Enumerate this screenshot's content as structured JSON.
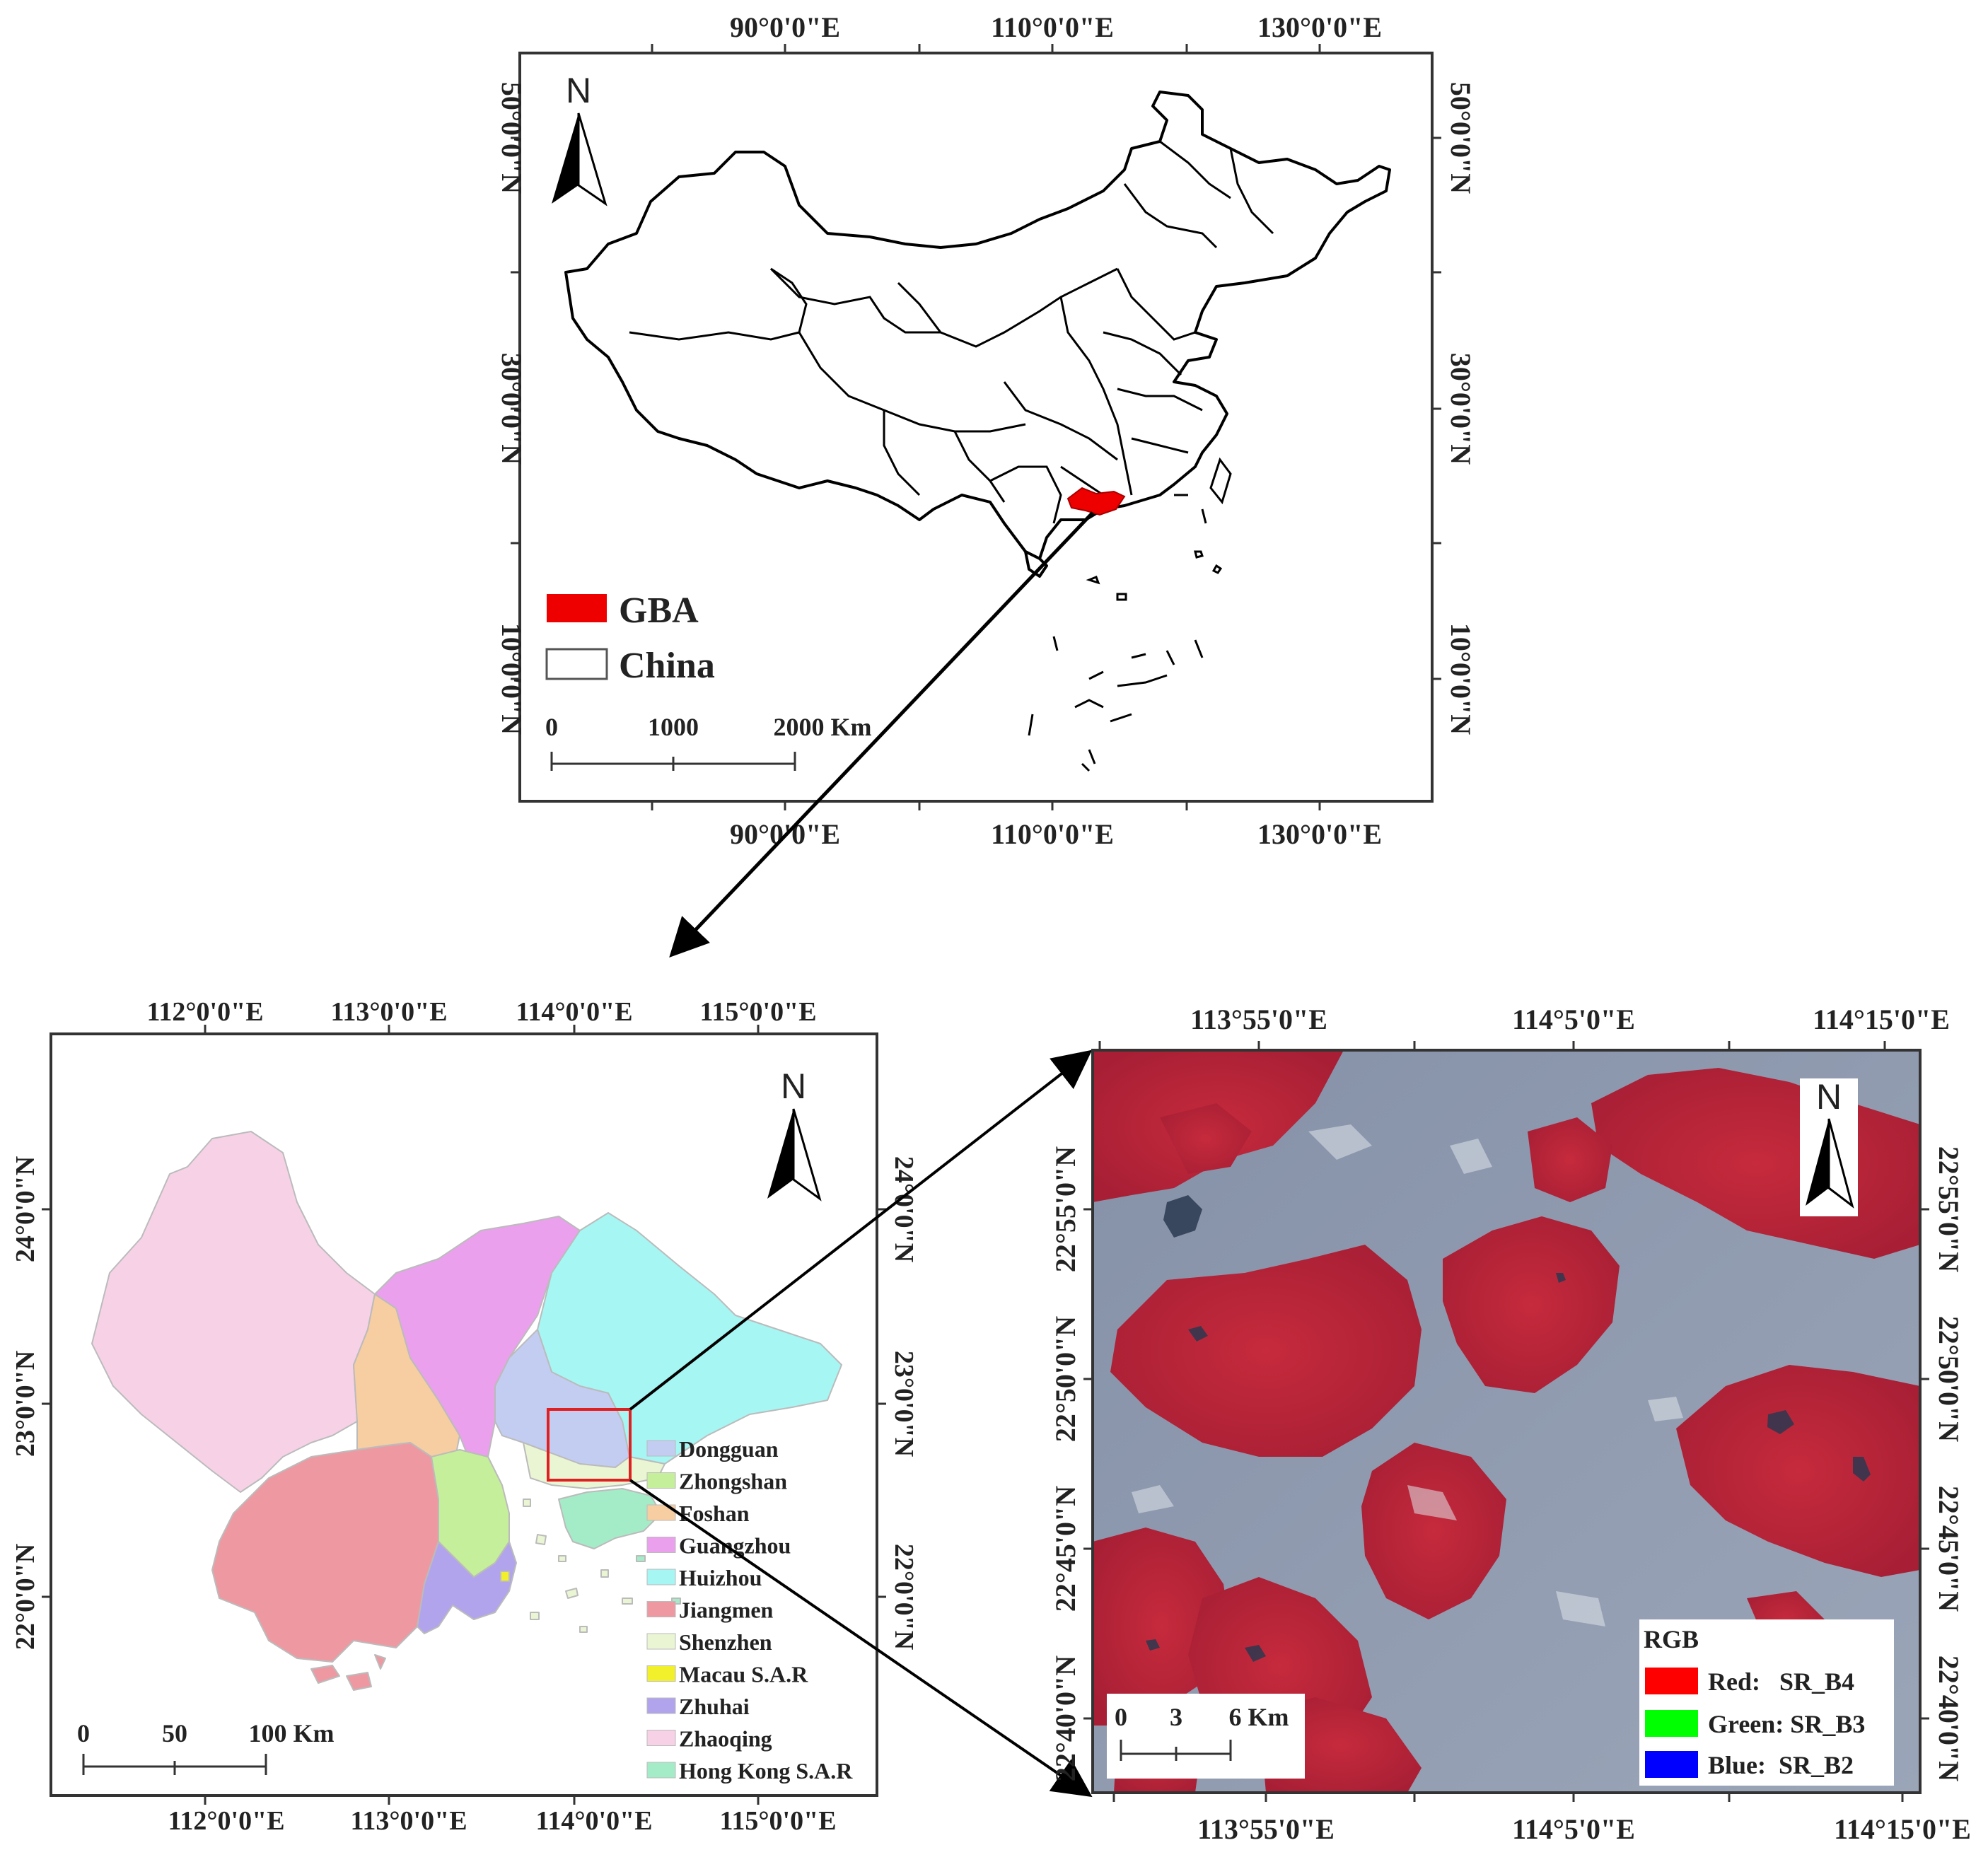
{
  "top_map": {
    "lon_ticks": [
      "90°0'0\"E",
      "110°0'0\"E",
      "130°0'0\"E"
    ],
    "lat_ticks": [
      "50°0'0\"N",
      "30°0'0\"N",
      "10°0'0\"N"
    ],
    "north": "N",
    "legend": [
      {
        "label": "GBA",
        "color": "#ee0000"
      },
      {
        "label": "China",
        "color": "#ffffff"
      }
    ],
    "scale": {
      "labels": [
        "0",
        "1000",
        "2000 Km"
      ]
    }
  },
  "gba_map": {
    "lon_ticks": [
      "112°0'0\"E",
      "113°0'0\"E",
      "114°0'0\"E",
      "115°0'0\"E"
    ],
    "lat_ticks": [
      "24°0'0\"N",
      "23°0'0\"N",
      "22°0'0\"N"
    ],
    "north": "N",
    "legend": [
      {
        "label": "Dongguan",
        "color": "#c3cdf2"
      },
      {
        "label": "Zhongshan",
        "color": "#c5ef9a"
      },
      {
        "label": "Foshan",
        "color": "#f7cda2"
      },
      {
        "label": "Guangzhou",
        "color": "#eba0ee"
      },
      {
        "label": "Huizhou",
        "color": "#a6f6f4"
      },
      {
        "label": "Jiangmen",
        "color": "#ee99a2"
      },
      {
        "label": "Shenzhen",
        "color": "#eaf6d3"
      },
      {
        "label": "Macau S.A.R",
        "color": "#f2f02a"
      },
      {
        "label": "Zhuhai",
        "color": "#b1a4ec"
      },
      {
        "label": "Zhaoqing",
        "color": "#f7d2e6"
      },
      {
        "label": "Hong Kong S.A.R",
        "color": "#a4ecc8"
      }
    ],
    "scale": {
      "labels": [
        "0",
        "50",
        "100 Km"
      ]
    }
  },
  "image_map": {
    "lon_ticks": [
      "113°55'0\"E",
      "114°5'0\"E",
      "114°15'0\"E"
    ],
    "lat_ticks": [
      "22°55'0\"N",
      "22°50'0\"N",
      "22°45'0\"N",
      "22°40'0\"N"
    ],
    "north": "N",
    "legend": {
      "title": "RGB",
      "items": [
        {
          "label": "Red:   SR_B4",
          "color": "#ff0000"
        },
        {
          "label": "Green: SR_B3",
          "color": "#00ff00"
        },
        {
          "label": "Blue:  SR_B2",
          "color": "#0000ff"
        }
      ]
    },
    "scale": {
      "labels": [
        "0",
        "3",
        "6 Km"
      ]
    }
  }
}
